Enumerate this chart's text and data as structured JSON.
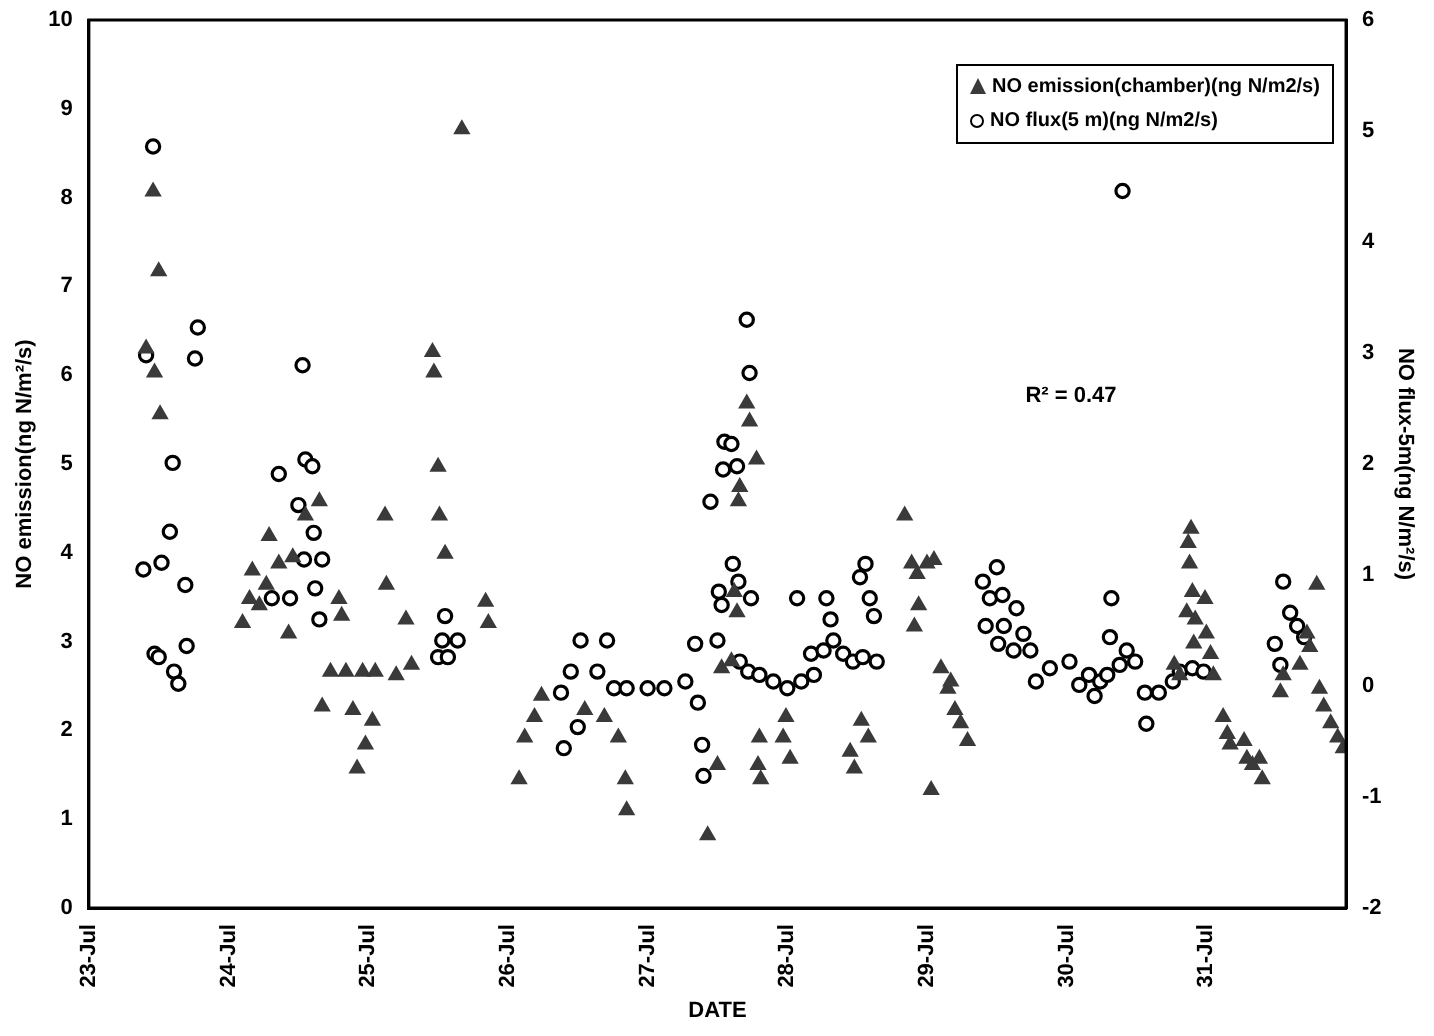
{
  "chart_data": {
    "type": "scatter",
    "xlabel": "DATE",
    "ylabel": "NO emission(ng N/m²/s)",
    "y2label": "NO flux-5m(ng N/m²/s)",
    "annotations": [
      "R² = 0.47"
    ],
    "xlim": [
      "--07-23",
      "--08-01"
    ],
    "xticks": [
      {
        "value": "--07-23",
        "label": "23-Jul"
      },
      {
        "value": "--07-24",
        "label": "24-Jul"
      },
      {
        "value": "--07-25",
        "label": "25-Jul"
      },
      {
        "value": "--07-26",
        "label": "26-Jul"
      },
      {
        "value": "--07-27",
        "label": "27-Jul"
      },
      {
        "value": "--07-28",
        "label": "28-Jul"
      },
      {
        "value": "--07-29",
        "label": "29-Jul"
      },
      {
        "value": "--07-30",
        "label": "30-Jul"
      },
      {
        "value": "--07-31",
        "label": "31-Jul"
      },
      {
        "value": "--08-01",
        "label": null
      }
    ],
    "ylim": [
      0,
      10
    ],
    "yticks": [
      0,
      1,
      2,
      3,
      4,
      5,
      6,
      7,
      8,
      9,
      10
    ],
    "y2lim": [
      -2,
      6
    ],
    "y2ticks": [
      -2,
      -1,
      0,
      1,
      2,
      3,
      4,
      5,
      6
    ],
    "grid": false,
    "legend": "top right",
    "series": [
      {
        "name": "NO emission(chamber)(ng N/m2/s)",
        "color": "#3a3a3a",
        "marker": "triangle",
        "x": [
          "--07-23T11:02",
          "--07-23T12:00",
          "--07-23T09:50",
          "--07-23T11:17",
          "--07-23T12:14",
          "--07-24T02:24",
          "--07-24T03:36",
          "--07-24T04:05",
          "--07-24T05:17",
          "--07-24T06:29",
          "--07-24T06:58",
          "--07-24T08:38",
          "--07-24T10:19",
          "--07-24T11:02",
          "--07-24T13:12",
          "--07-24T15:36",
          "--07-24T16:05",
          "--07-24T17:31",
          "--07-24T18:58",
          "--07-24T19:26",
          "--07-24T20:10",
          "--07-24T21:22",
          "--07-24T22:05",
          "--07-24T23:02",
          "--07-24T23:31",
          "--07-25T00:43",
          "--07-25T01:12",
          "--07-25T02:53",
          "--07-25T03:07",
          "--07-25T04:48",
          "--07-25T06:29",
          "--07-25T07:26",
          "--07-25T11:02",
          "--07-25T11:17",
          "--07-25T12:00",
          "--07-25T12:14",
          "--07-25T13:12",
          "--07-25T16:05",
          "--07-25T20:10",
          "--07-25T20:38",
          "--07-26T01:55",
          "--07-26T02:53",
          "--07-26T04:34",
          "--07-26T05:46",
          "--07-26T13:12",
          "--07-26T16:34",
          "--07-26T18:58",
          "--07-26T20:10",
          "--07-26T20:24",
          "--07-27T10:19",
          "--07-27T12:00",
          "--07-27T12:43",
          "--07-27T14:24",
          "--07-27T14:53",
          "--07-27T15:22",
          "--07-27T15:36",
          "--07-27T15:50",
          "--07-27T17:02",
          "--07-27T17:31",
          "--07-27T18:43",
          "--07-27T18:58",
          "--07-27T19:12",
          "--07-27T19:26",
          "--07-27T23:17",
          "--07-27T23:46",
          "--07-28T00:29",
          "--07-28T10:48",
          "--07-28T11:31",
          "--07-28T12:43",
          "--07-28T13:55",
          "--07-28T20:10",
          "--07-28T21:22",
          "--07-28T21:50",
          "--07-28T22:19",
          "--07-28T22:34",
          "--07-29T00:00",
          "--07-29T00:43",
          "--07-29T01:12",
          "--07-29T02:24",
          "--07-29T03:36",
          "--07-29T04:05",
          "--07-29T04:48",
          "--07-29T05:46",
          "--07-29T06:58",
          "--07-30T18:29",
          "--07-30T19:26",
          "--07-30T20:38",
          "--07-30T20:53",
          "--07-30T21:07",
          "--07-30T21:22",
          "--07-30T21:36",
          "--07-30T21:50",
          "--07-30T22:05",
          "--07-30T23:46",
          "--07-31T00:00",
          "--07-31T00:43",
          "--07-31T01:12",
          "--07-31T02:53",
          "--07-31T03:36",
          "--07-31T04:05",
          "--07-31T06:29",
          "--07-31T06:58",
          "--07-31T07:55",
          "--07-31T09:07",
          "--07-31T09:36",
          "--07-31T12:43",
          "--07-31T13:12",
          "--07-31T16:05",
          "--07-31T17:17",
          "--07-31T17:46",
          "--07-31T18:58",
          "--07-31T19:26",
          "--07-31T20:10",
          "--07-31T21:22",
          "--07-31T22:34",
          "--07-31T23:31"
        ],
        "values": [
          8.07,
          7.17,
          6.3,
          6.03,
          5.56,
          3.21,
          3.48,
          3.8,
          3.41,
          3.64,
          4.19,
          3.88,
          3.09,
          3.95,
          4.42,
          4.58,
          2.27,
          2.66,
          3.48,
          3.29,
          2.66,
          2.23,
          1.57,
          2.66,
          1.84,
          2.11,
          2.66,
          4.42,
          3.64,
          2.62,
          3.25,
          2.74,
          6.26,
          6.03,
          4.97,
          4.42,
          3.99,
          8.77,
          3.45,
          3.21,
          1.45,
          1.92,
          2.15,
          2.39,
          2.23,
          2.15,
          1.92,
          1.45,
          1.1,
          0.82,
          1.61,
          2.7,
          2.78,
          3.56,
          3.33,
          4.58,
          4.74,
          5.68,
          5.48,
          5.05,
          1.61,
          1.92,
          1.45,
          1.92,
          2.15,
          1.68,
          1.76,
          1.57,
          2.11,
          1.92,
          4.42,
          3.88,
          3.17,
          3.76,
          3.41,
          3.88,
          1.33,
          3.92,
          2.7,
          2.47,
          2.55,
          2.23,
          2.08,
          1.88,
          2.74,
          2.62,
          3.33,
          4.11,
          3.88,
          4.27,
          3.56,
          2.98,
          3.25,
          3.48,
          3.09,
          2.86,
          2.62,
          2.15,
          1.96,
          1.84,
          1.88,
          1.68,
          1.61,
          1.68,
          1.45,
          2.43,
          2.62,
          2.74,
          3.09,
          2.94,
          3.64,
          2.47,
          2.27,
          2.08,
          1.92,
          1.8
        ]
      },
      {
        "name": "NO flux(5 m)(ng N/m2/s)",
        "color": "#000000",
        "marker": "circle",
        "axis": "y2",
        "x": [
          "--07-23T11:02",
          "--07-23T18:43",
          "--07-23T18:14",
          "--07-23T09:50",
          "--07-23T14:24",
          "--07-23T13:55",
          "--07-23T09:22",
          "--07-23T12:29",
          "--07-23T16:34",
          "--07-23T11:17",
          "--07-23T12:00",
          "--07-23T16:48",
          "--07-23T14:38",
          "--07-23T15:22",
          "--07-24T07:26",
          "--07-24T08:38",
          "--07-24T10:34",
          "--07-24T12:00",
          "--07-24T12:43",
          "--07-24T12:58",
          "--07-24T13:12",
          "--07-24T14:24",
          "--07-24T14:38",
          "--07-24T14:53",
          "--07-24T15:36",
          "--07-24T16:05",
          "--07-25T12:00",
          "--07-25T12:43",
          "--07-25T13:12",
          "--07-25T13:41",
          "--07-25T15:22",
          "--07-26T09:07",
          "--07-26T09:36",
          "--07-26T10:48",
          "--07-26T12:00",
          "--07-26T12:29",
          "--07-26T15:22",
          "--07-26T17:02",
          "--07-26T18:14",
          "--07-26T20:24",
          "--07-27T00:00",
          "--07-27T02:53",
          "--07-27T06:29",
          "--07-27T08:10",
          "--07-27T08:38",
          "--07-27T09:22",
          "--07-27T09:36",
          "--07-27T10:48",
          "--07-27T12:00",
          "--07-27T12:14",
          "--07-27T12:43",
          "--07-27T12:58",
          "--07-27T13:12",
          "--07-27T14:24",
          "--07-27T14:38",
          "--07-27T15:22",
          "--07-27T15:36",
          "--07-27T15:50",
          "--07-27T17:02",
          "--07-27T17:17",
          "--07-27T17:31",
          "--07-27T17:46",
          "--07-27T19:12",
          "--07-27T21:36",
          "--07-28T00:00",
          "--07-28T01:41",
          "--07-28T02:24",
          "--07-28T04:05",
          "--07-28T04:34",
          "--07-28T06:14",
          "--07-28T06:43",
          "--07-28T07:26",
          "--07-28T07:55",
          "--07-28T09:36",
          "--07-28T11:17",
          "--07-28T12:29",
          "--07-28T12:58",
          "--07-28T13:26",
          "--07-28T14:10",
          "--07-28T14:53",
          "--07-28T15:22",
          "--07-29T09:36",
          "--07-29T10:05",
          "--07-29T10:48",
          "--07-29T12:00",
          "--07-29T12:14",
          "--07-29T12:58",
          "--07-29T13:12",
          "--07-29T14:53",
          "--07-29T15:22",
          "--07-29T16:34",
          "--07-29T17:46",
          "--07-29T18:43",
          "--07-29T21:07",
          "--07-30T00:29",
          "--07-30T02:10",
          "--07-30T03:50",
          "--07-30T04:48",
          "--07-30T05:46",
          "--07-30T06:58",
          "--07-30T07:26",
          "--07-30T07:41",
          "--07-30T09:07",
          "--07-30T09:36",
          "--07-30T10:19",
          "--07-30T11:46",
          "--07-30T13:26",
          "--07-30T13:41",
          "--07-30T15:50",
          "--07-30T18:14",
          "--07-30T19:26",
          "--07-30T21:36",
          "--07-30T23:31",
          "--07-31T11:46",
          "--07-31T12:43",
          "--07-31T13:12",
          "--07-31T14:24",
          "--07-31T15:36",
          "--07-31T16:48"
        ],
        "values": [
          4.86,
          3.23,
          2.95,
          2.98,
          2.01,
          1.39,
          1.05,
          1.11,
          0.91,
          0.29,
          0.26,
          0.36,
          0.13,
          0.02,
          0.79,
          1.91,
          0.79,
          1.63,
          2.89,
          1.14,
          2.04,
          1.98,
          1.38,
          0.88,
          0.6,
          1.14,
          0.26,
          0.41,
          0.63,
          0.26,
          0.41,
          -0.06,
          -0.56,
          0.13,
          -0.37,
          0.41,
          0.13,
          0.41,
          -0.02,
          -0.02,
          -0.02,
          -0.02,
          0.04,
          0.38,
          -0.15,
          -0.53,
          -0.81,
          1.66,
          0.41,
          0.85,
          0.73,
          1.95,
          2.2,
          2.18,
          1.1,
          1.98,
          0.94,
          0.22,
          3.3,
          0.13,
          2.82,
          0.79,
          0.1,
          0.04,
          -0.02,
          0.79,
          0.04,
          0.29,
          0.1,
          0.32,
          0.79,
          0.6,
          0.41,
          0.29,
          0.22,
          0.98,
          0.26,
          1.1,
          0.79,
          0.63,
          0.22,
          0.94,
          0.54,
          0.79,
          1.07,
          0.38,
          0.82,
          0.54,
          0.32,
          0.7,
          0.47,
          0.32,
          0.04,
          0.16,
          0.22,
          0.01,
          0.1,
          -0.09,
          0.04,
          0.1,
          0.44,
          0.79,
          0.19,
          4.46,
          0.32,
          0.22,
          -0.06,
          -0.34,
          -0.06,
          0.04,
          0.13,
          0.16,
          0.13,
          0.38,
          0.19,
          0.94,
          0.66,
          0.54,
          0.44
        ]
      }
    ]
  }
}
